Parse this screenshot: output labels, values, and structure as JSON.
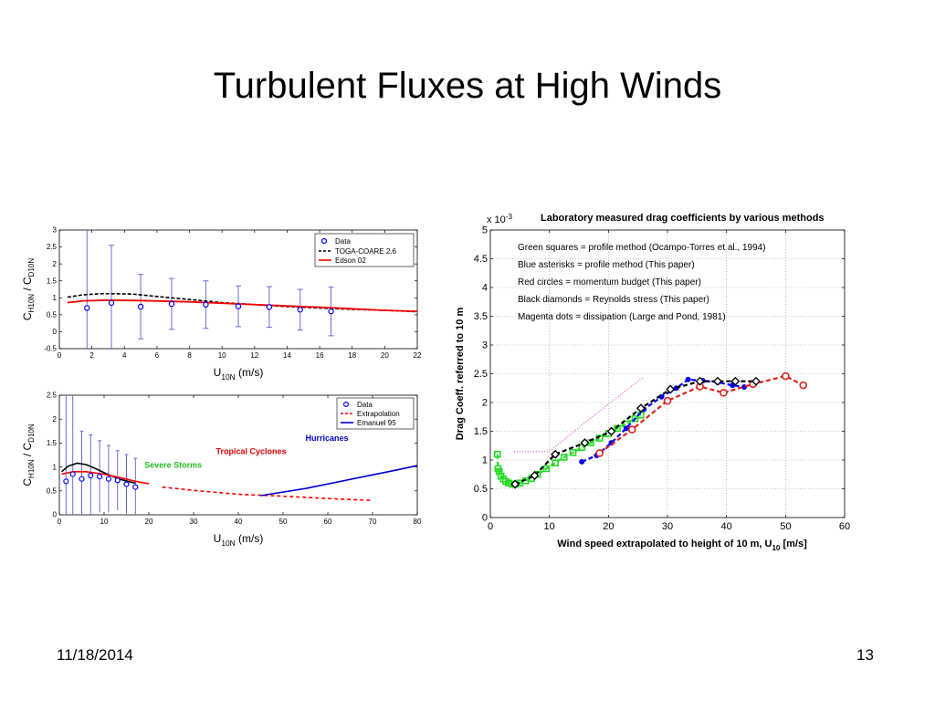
{
  "slide": {
    "title": "Turbulent Fluxes at High Winds",
    "date": "11/18/2014",
    "page": "13"
  },
  "colors": {
    "data_marker": "#0000ff",
    "toga": "#000000",
    "edson": "#ff0000",
    "extrapolation": "#ff0000",
    "emanuel": "#0000cc",
    "errbar": "#6b6bdc",
    "severe_storms": "#22bb22",
    "tropical_cyclones": "#dd0000",
    "hurricanes": "#0000cc",
    "green": "#22dd22",
    "blue": "#0000ff",
    "red": "#dd2222",
    "black": "#000000",
    "magenta": "#dd66dd"
  },
  "chart_data": [
    {
      "type": "line",
      "xlabel_main": "U",
      "xlabel_sub": "10N",
      "xlabel_unit": "(m/s)",
      "ylabel": {
        "c1": "C",
        "s1": "H10N",
        "mid": " / C",
        "s2": "D10N"
      },
      "xlim": [
        0,
        22
      ],
      "ylim": [
        -0.5,
        3
      ],
      "xticks": [
        0,
        2,
        4,
        6,
        8,
        10,
        12,
        14,
        16,
        18,
        20,
        22
      ],
      "yticks": [
        -0.5,
        0,
        0.5,
        1,
        1.5,
        2,
        2.5,
        3
      ],
      "grid": false,
      "legend_position": "top-right",
      "legend": [
        "Data",
        "TOGA-COARE 2.6",
        "Edson 02"
      ],
      "series": [
        {
          "name": "Data",
          "kind": "errorbar",
          "x": [
            1.7,
            3.2,
            5,
            6.9,
            9,
            11,
            12.9,
            14.8,
            16.7
          ],
          "y": [
            0.7,
            0.85,
            0.74,
            0.82,
            0.8,
            0.75,
            0.73,
            0.65,
            0.6
          ],
          "err": [
            2.6,
            1.7,
            0.95,
            0.75,
            0.7,
            0.6,
            0.6,
            0.6,
            0.72
          ]
        },
        {
          "name": "TOGA-COARE 2.6",
          "kind": "line",
          "x": [
            0.5,
            1.5,
            2.5,
            3.5,
            4.5,
            6,
            8,
            10,
            12,
            14,
            16,
            18,
            20,
            22
          ],
          "y": [
            1.02,
            1.09,
            1.12,
            1.12,
            1.11,
            1.04,
            0.95,
            0.86,
            0.8,
            0.74,
            0.7,
            0.66,
            0.63,
            0.59
          ]
        },
        {
          "name": "Edson 02",
          "kind": "line",
          "x": [
            0.5,
            1.5,
            3,
            5,
            8,
            11,
            14,
            17,
            20,
            22
          ],
          "y": [
            0.86,
            0.91,
            0.93,
            0.92,
            0.88,
            0.82,
            0.76,
            0.7,
            0.63,
            0.6
          ]
        }
      ]
    },
    {
      "type": "line",
      "xlabel_main": "U",
      "xlabel_sub": "10N",
      "xlabel_unit": "(m/s)",
      "ylabel": {
        "c1": "C",
        "s1": "H10N",
        "mid": " / C",
        "s2": "D10N"
      },
      "xlim": [
        0,
        80
      ],
      "ylim": [
        0,
        2.5
      ],
      "xticks": [
        0,
        10,
        20,
        30,
        40,
        50,
        60,
        70,
        80
      ],
      "yticks": [
        0,
        0.5,
        1,
        1.5,
        2,
        2.5
      ],
      "grid": false,
      "legend_position": "top-right",
      "legend": [
        "Data",
        "Extrapolation",
        "Emanuel 95"
      ],
      "annotations": [
        "Hurricanes",
        "Tropical Cyclones",
        "Severe Storms"
      ],
      "series": [
        {
          "name": "Data",
          "kind": "errorbar",
          "x": [
            1.5,
            3,
            5,
            7,
            9,
            11,
            13,
            15,
            17
          ],
          "y": [
            0.7,
            0.85,
            0.75,
            0.82,
            0.8,
            0.75,
            0.72,
            0.64,
            0.58
          ],
          "err": [
            2,
            1.8,
            1,
            0.85,
            0.75,
            0.7,
            0.62,
            0.62,
            0.6
          ]
        },
        {
          "name": "black",
          "kind": "line",
          "x": [
            0.5,
            2,
            4,
            6,
            8,
            10,
            12,
            14,
            17
          ],
          "y": [
            0.9,
            1.02,
            1.08,
            1.05,
            0.97,
            0.88,
            0.8,
            0.73,
            0.66
          ]
        },
        {
          "name": "red",
          "kind": "line",
          "x": [
            0.5,
            3,
            6,
            10,
            14,
            17,
            20
          ],
          "y": [
            0.85,
            0.9,
            0.9,
            0.85,
            0.77,
            0.7,
            0.65
          ]
        },
        {
          "name": "Extrapolation",
          "kind": "dashed",
          "x": [
            23,
            30,
            40,
            50,
            60,
            70
          ],
          "y": [
            0.58,
            0.51,
            0.43,
            0.39,
            0.34,
            0.3
          ]
        },
        {
          "name": "Emanuel 95",
          "kind": "line",
          "x": [
            45,
            55,
            65,
            75,
            80
          ],
          "y": [
            0.4,
            0.55,
            0.74,
            0.93,
            1.03
          ]
        }
      ]
    },
    {
      "type": "scatter",
      "title": "Laboratory measured drag coefficients by various methods",
      "exponent": "x 10",
      "exponent_sup": "-3",
      "xlabel": "Wind speed extrapolated to height of 10 m, U",
      "xlabel_sub": "10",
      "xlabel_unit": "[m/s]",
      "ylabel": "Drag Coeff. referred to 10 m",
      "xlim": [
        0,
        60
      ],
      "ylim": [
        0,
        5
      ],
      "xticks": [
        0,
        10,
        20,
        30,
        40,
        50,
        60
      ],
      "yticks": [
        0,
        0.5,
        1,
        1.5,
        2,
        2.5,
        3,
        3.5,
        4,
        4.5,
        5
      ],
      "grid": true,
      "legend_position": "top-left",
      "legend": [
        "Green squares  = profile method  (Ocampo-Torres et al., 1994)",
        "Blue asterisks = profile method  (This paper)",
        "Red circles    = momentum budget (This paper)",
        "Black diamonds = Reynolds stress (This paper)",
        "Magenta dots   = dissipation     (Large and Pond, 1981)"
      ],
      "series": [
        {
          "name": "Green squares",
          "marker": "square",
          "line": "dashed",
          "x": [
            1.2,
            1.3,
            1.5,
            1.8,
            2.2,
            2.6,
            3.1,
            3.7,
            4.2,
            5,
            6,
            7,
            8,
            9.5,
            11,
            12.5,
            14,
            15.5,
            17,
            18.5,
            20,
            21.5,
            23,
            24.5,
            25.5
          ],
          "y": [
            1.1,
            0.85,
            0.8,
            0.72,
            0.67,
            0.63,
            0.6,
            0.58,
            0.58,
            0.6,
            0.64,
            0.68,
            0.75,
            0.85,
            0.95,
            1.05,
            1.13,
            1.22,
            1.3,
            1.38,
            1.46,
            1.55,
            1.63,
            1.72,
            1.78
          ]
        },
        {
          "name": "Blue asterisks",
          "marker": "dot",
          "line": "dashed",
          "x": [
            15.5,
            18,
            20.5,
            23,
            26,
            29,
            31.5,
            33.5,
            36,
            38.5,
            41,
            43
          ],
          "y": [
            0.97,
            1.08,
            1.3,
            1.55,
            1.88,
            2.1,
            2.25,
            2.4,
            2.38,
            2.35,
            2.3,
            2.27
          ]
        },
        {
          "name": "Red circles",
          "marker": "circle",
          "line": "dashed",
          "x": [
            18.5,
            24,
            30,
            35.5,
            39.5,
            44.5,
            50,
            53
          ],
          "y": [
            1.12,
            1.53,
            2.03,
            2.28,
            2.17,
            2.32,
            2.46,
            2.3
          ]
        },
        {
          "name": "Black diamonds",
          "marker": "diamond",
          "line": "dashed",
          "x": [
            4.2,
            7.5,
            11,
            16,
            20.5,
            25.5,
            30.5,
            35.5,
            38.5,
            41.5,
            45
          ],
          "y": [
            0.58,
            0.73,
            1.1,
            1.3,
            1.5,
            1.9,
            2.23,
            2.37,
            2.37,
            2.37,
            2.37
          ]
        },
        {
          "name": "Magenta dots",
          "marker": "none",
          "line": "dotted",
          "x": [
            4,
            10,
            16,
            21,
            26
          ],
          "y": [
            1.15,
            1.15,
            1.65,
            2.05,
            2.45
          ]
        }
      ]
    }
  ]
}
